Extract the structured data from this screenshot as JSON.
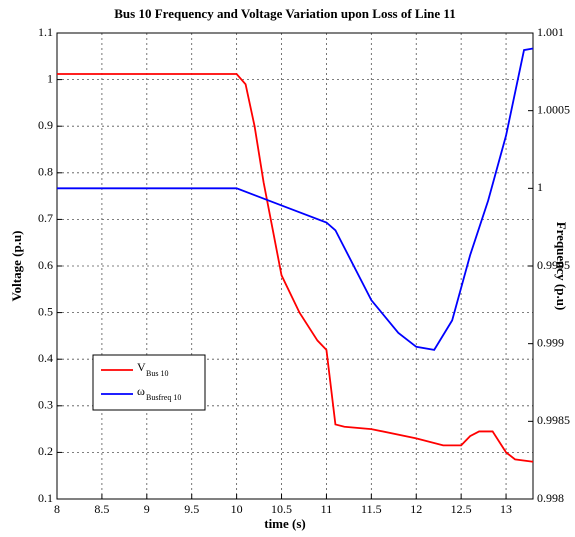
{
  "chart_data": {
    "type": "line",
    "title": "Bus 10 Frequency and Voltage Variation upon Loss of Line 11",
    "xlabel": "time (s)",
    "ylabel": "Voltage (p.u)",
    "y2label": "Frequency (p.u)",
    "xlim": [
      8,
      13.3
    ],
    "xticks": [
      8,
      8.5,
      9,
      9.5,
      10,
      10.5,
      11,
      11.5,
      12,
      12.5,
      13
    ],
    "ylim": [
      0.1,
      1.1
    ],
    "yticks": [
      0.1,
      0.2,
      0.3,
      0.4,
      0.5,
      0.6,
      0.7,
      0.8,
      0.9,
      1,
      1.1
    ],
    "y2lim": [
      0.998,
      1.001
    ],
    "y2ticks": [
      0.998,
      0.9985,
      0.999,
      0.9995,
      1,
      1.0005,
      1.001
    ],
    "grid": true,
    "legend": "lower left",
    "series": [
      {
        "name": "V",
        "name_sub": "Bus 10",
        "color": "#ff0000",
        "x": [
          8,
          10,
          10.1,
          10.2,
          10.3,
          10.4,
          10.5,
          10.7,
          10.9,
          11.0,
          11.1,
          11.2,
          11.5,
          12.0,
          12.3,
          12.5,
          12.6,
          12.7,
          12.85,
          13.0,
          13.1,
          13.3
        ],
        "values": [
          1.012,
          1.012,
          0.99,
          0.9,
          0.78,
          0.68,
          0.58,
          0.5,
          0.44,
          0.42,
          0.26,
          0.255,
          0.25,
          0.23,
          0.215,
          0.215,
          0.235,
          0.245,
          0.245,
          0.2,
          0.185,
          0.18
        ]
      },
      {
        "name": "ω",
        "name_sub": "Busfreq 10",
        "color": "#0000ff",
        "axis": "y2",
        "x": [
          8,
          10,
          10.5,
          11.0,
          11.1,
          11.5,
          11.8,
          12.0,
          12.2,
          12.4,
          12.6,
          12.8,
          13.0,
          13.2,
          13.3
        ],
        "values": [
          1.0,
          1.0,
          0.99989,
          0.99978,
          0.99973,
          0.99928,
          0.99907,
          0.99898,
          0.99896,
          0.99915,
          0.99957,
          0.99992,
          1.00034,
          1.00089,
          1.0009
        ]
      }
    ]
  }
}
